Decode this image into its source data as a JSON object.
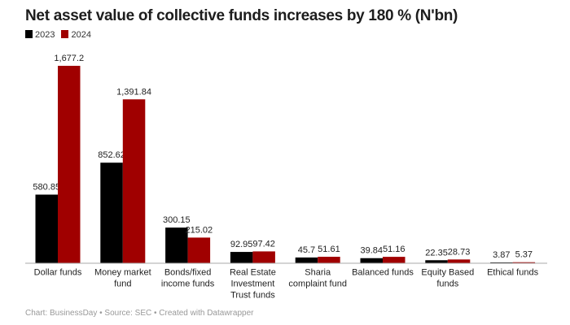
{
  "chart_data": {
    "type": "bar",
    "title": "Net asset value of collective funds increases by 180 % (N'bn)",
    "categories": [
      "Dollar funds",
      "Money market fund",
      "Bonds/fixed income funds",
      "Real Estate Investment Trust funds",
      "Sharia complaint fund",
      "Balanced funds",
      "Equity Based funds",
      "Ethical funds"
    ],
    "category_lines": [
      [
        "Dollar funds"
      ],
      [
        "Money market",
        "fund"
      ],
      [
        "Bonds/fixed",
        "income funds"
      ],
      [
        "Real Estate",
        "Investment",
        "Trust funds"
      ],
      [
        "Sharia",
        "complaint fund"
      ],
      [
        "Balanced funds"
      ],
      [
        "Equity Based",
        "funds"
      ],
      [
        "Ethical funds"
      ]
    ],
    "series": [
      {
        "name": "2023",
        "color": "#000000",
        "values": [
          580.85,
          852.62,
          300.15,
          92.95,
          45.7,
          39.84,
          22.35,
          3.87
        ],
        "labels": [
          "580.85",
          "852.62",
          "300.15",
          "92.95",
          "45.7",
          "39.84",
          "22.35",
          "3.87"
        ]
      },
      {
        "name": "2024",
        "color": "#a00000",
        "values": [
          1677.2,
          1391.84,
          215.02,
          97.42,
          51.61,
          51.16,
          28.73,
          5.37
        ],
        "labels": [
          "1,677.2",
          "1,391.84",
          "215.02",
          "97.42",
          "51.61",
          "51.16",
          "28.73",
          "5.37"
        ]
      }
    ],
    "ylim": [
      0,
      1677.2
    ],
    "grid": false,
    "legend_placement": "top-left"
  },
  "footer": "Chart: BusinessDay • Source: SEC • Created with Datawrapper"
}
